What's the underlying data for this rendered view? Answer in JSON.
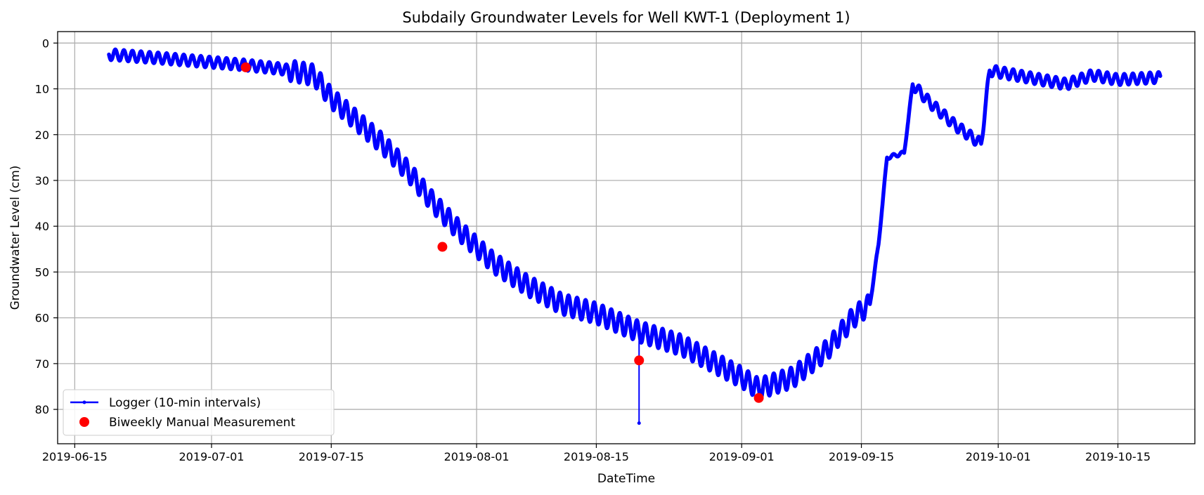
{
  "chart_data": {
    "type": "line",
    "title": "Subdaily Groundwater Levels for Well KWT-1 (Deployment 1)",
    "xlabel": "DateTime",
    "ylabel": "Groundwater Level (cm)",
    "x_ticks": [
      "2019-06-15",
      "2019-07-01",
      "2019-07-15",
      "2019-08-01",
      "2019-08-15",
      "2019-09-01",
      "2019-09-15",
      "2019-10-01",
      "2019-10-15"
    ],
    "y_ticks": [
      0,
      10,
      20,
      30,
      40,
      50,
      60,
      70,
      80
    ],
    "xlim": [
      "2019-06-13",
      "2019-10-24"
    ],
    "ylim": [
      87.5,
      -2.5
    ],
    "y_inverted": true,
    "grid": true,
    "legend_position": "lower-left",
    "colors": {
      "logger": "#0000ff",
      "manual": "#ff0000"
    },
    "series": [
      {
        "name": "Logger (10-min intervals)",
        "style": "line-with-dot-markers",
        "daily_amplitude_cm": 1.2,
        "x": [
          "2019-06-19",
          "2019-06-25",
          "2019-07-01",
          "2019-07-05",
          "2019-07-09",
          "2019-07-13",
          "2019-07-15",
          "2019-07-18",
          "2019-07-21",
          "2019-07-24",
          "2019-07-27",
          "2019-07-30",
          "2019-08-03",
          "2019-08-07",
          "2019-08-11",
          "2019-08-15",
          "2019-08-20",
          "2019-08-25",
          "2019-09-01",
          "2019-09-03",
          "2019-09-07",
          "2019-09-11",
          "2019-09-14",
          "2019-09-16",
          "2019-09-17",
          "2019-09-18",
          "2019-09-20",
          "2019-09-21",
          "2019-09-23",
          "2019-09-26",
          "2019-09-29",
          "2019-09-30",
          "2019-10-03",
          "2019-10-06",
          "2019-10-09",
          "2019-10-12",
          "2019-10-15",
          "2019-10-20"
        ],
        "values": [
          2.5,
          3.3,
          4.2,
          4.8,
          5.6,
          7.0,
          12.0,
          17.0,
          22.0,
          28.0,
          35.0,
          41.0,
          48.0,
          53.0,
          57.0,
          59.0,
          63.0,
          66.0,
          73.0,
          75.5,
          73.0,
          67.0,
          60.0,
          57.0,
          44.0,
          25.0,
          24.0,
          9.0,
          13.0,
          18.0,
          22.0,
          6.0,
          7.0,
          8.0,
          9.0,
          7.0,
          8.0,
          7.5
        ]
      },
      {
        "name": "Biweekly Manual Measurement",
        "style": "scatter",
        "x": [
          "2019-07-05",
          "2019-07-28",
          "2019-08-20",
          "2019-09-03"
        ],
        "values": [
          5.3,
          44.5,
          69.3,
          77.5
        ]
      }
    ],
    "annotations": [
      {
        "type": "spike",
        "x": "2019-08-20",
        "from": 65.0,
        "to": 83.0
      }
    ]
  }
}
